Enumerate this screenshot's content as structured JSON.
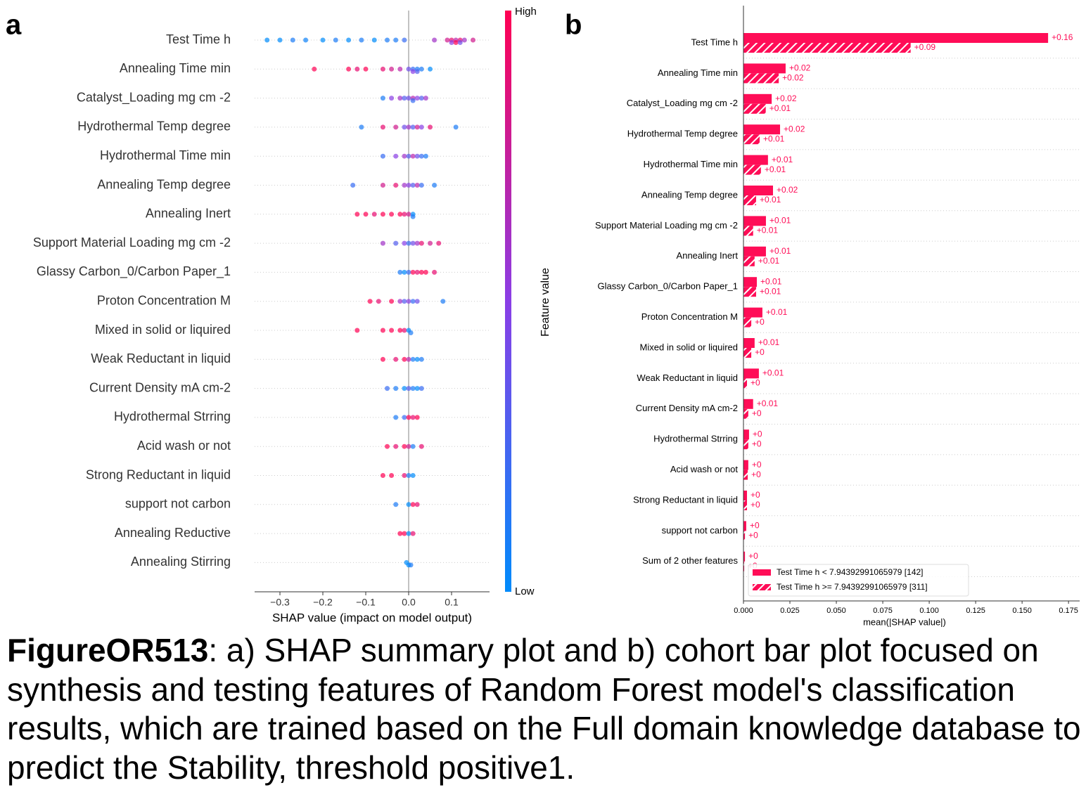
{
  "chart_data": [
    {
      "type": "beeswarm",
      "panel_label": "a",
      "features": [
        "Test Time h",
        "Annealing Time min",
        "Catalyst_Loading mg cm -2",
        "Hydrothermal Temp degree",
        "Hydrothermal Time min",
        "Annealing Temp degree",
        "Annealing Inert",
        "Support Material Loading mg cm -2",
        "Glassy Carbon_0/Carbon Paper_1",
        "Proton Concentration M",
        "Mixed in solid or liquired",
        "Weak Reductant in liquid",
        "Current Density mA cm-2",
        "Hydrothermal Strring",
        "Acid wash or not",
        "Strong Reductant in liquid",
        "support not carbon",
        "Annealing Reductive",
        "Annealing Stirring"
      ],
      "shap_values": [
        [
          -0.33,
          -0.3,
          -0.27,
          -0.24,
          -0.2,
          -0.17,
          -0.14,
          -0.11,
          -0.08,
          -0.05,
          -0.03,
          -0.01,
          0.06,
          0.09,
          0.1,
          0.11,
          0.12,
          0.13,
          0.15,
          0.1,
          0.11,
          0.12
        ],
        [
          -0.22,
          -0.14,
          -0.12,
          -0.1,
          -0.06,
          -0.04,
          -0.02,
          0.0,
          0.01,
          0.02,
          0.02,
          0.03,
          0.01,
          0.05
        ],
        [
          -0.06,
          -0.04,
          -0.02,
          -0.01,
          0.0,
          0.01,
          0.01,
          0.02,
          0.03,
          0.04
        ],
        [
          -0.11,
          -0.06,
          -0.03,
          -0.01,
          0.0,
          0.01,
          0.02,
          0.03,
          0.05,
          0.11
        ],
        [
          -0.06,
          -0.03,
          -0.01,
          0.0,
          0.01,
          0.02,
          0.03,
          0.04
        ],
        [
          -0.13,
          -0.06,
          -0.03,
          -0.01,
          0.0,
          0.01,
          0.02,
          0.03,
          0.06
        ],
        [
          -0.12,
          -0.1,
          -0.08,
          -0.06,
          -0.04,
          -0.02,
          -0.01,
          0.0,
          0.01,
          0.01
        ],
        [
          -0.06,
          -0.03,
          -0.01,
          0.0,
          0.01,
          0.02,
          0.03,
          0.05,
          0.07
        ],
        [
          -0.02,
          -0.01,
          0.0,
          0.01,
          0.02,
          0.03,
          0.04,
          0.06
        ],
        [
          -0.09,
          -0.07,
          -0.04,
          -0.02,
          -0.01,
          0.0,
          0.01,
          0.02,
          0.08
        ],
        [
          -0.12,
          -0.06,
          -0.04,
          -0.02,
          -0.01,
          0.0,
          0.005
        ],
        [
          -0.06,
          -0.03,
          -0.01,
          0.0,
          0.01,
          0.02,
          0.03
        ],
        [
          -0.05,
          -0.03,
          -0.01,
          0.0,
          0.01,
          0.02,
          0.03
        ],
        [
          -0.03,
          -0.01,
          0.0,
          0.01,
          0.02
        ],
        [
          -0.05,
          -0.03,
          -0.01,
          0.0,
          0.01,
          0.03
        ],
        [
          -0.06,
          -0.04,
          -0.01,
          0.0,
          0.01
        ],
        [
          -0.03,
          0.0,
          0.01,
          0.02
        ],
        [
          -0.02,
          -0.01,
          0.0,
          0.01
        ],
        [
          -0.005,
          0.0,
          0.005
        ]
      ],
      "feature_values": [
        [
          0,
          0,
          0.1,
          0.05,
          0,
          0.1,
          0,
          0.1,
          0,
          0.1,
          0.1,
          0.2,
          0.6,
          0.8,
          0.9,
          0.7,
          0.9,
          0.6,
          0.8,
          0.5,
          1,
          0.4
        ],
        [
          1,
          1,
          0.9,
          1,
          0.9,
          0.8,
          0.7,
          0.4,
          0.2,
          0.1,
          0.3,
          0.1,
          0.5,
          0
        ],
        [
          0.1,
          0.5,
          0.6,
          0.3,
          0.4,
          0.7,
          0.2,
          0.5,
          0.3,
          0.6
        ],
        [
          0.1,
          0.9,
          0.8,
          0.4,
          0.6,
          0.3,
          0.8,
          0.5,
          0.9,
          0.1
        ],
        [
          0.2,
          0.5,
          0.6,
          0.3,
          0.7,
          0.4,
          0.2,
          0.1
        ],
        [
          0.2,
          0.8,
          0.9,
          0.6,
          0.5,
          0.3,
          0.7,
          0.2,
          0.1
        ],
        [
          1,
          1,
          0.9,
          1,
          1,
          1,
          0.9,
          0.8,
          0,
          0.1
        ],
        [
          0.6,
          0.3,
          0.5,
          0.2,
          0.4,
          0.6,
          0.9,
          0.8,
          0.9
        ],
        [
          0.1,
          0,
          0.2,
          1,
          0.9,
          1,
          1,
          0.9
        ],
        [
          1,
          0.9,
          1,
          0.6,
          0.3,
          0.5,
          0.2,
          0.4,
          0.1
        ],
        [
          1,
          1,
          1,
          1,
          0.9,
          0,
          0.1
        ],
        [
          1,
          0.9,
          1,
          0.7,
          0.1,
          0,
          0.1
        ],
        [
          0.2,
          0.1,
          0,
          0.3,
          0.1,
          0,
          0.2
        ],
        [
          0.1,
          0.2,
          1,
          0.9,
          1
        ],
        [
          1,
          0.9,
          1,
          0.8,
          0.1,
          0.9
        ],
        [
          1,
          1,
          0.9,
          0.1,
          0
        ],
        [
          0.1,
          0,
          1,
          0.9
        ],
        [
          1,
          1,
          0,
          0.9
        ],
        [
          0,
          0,
          0.1
        ]
      ],
      "colormap": [
        "#008bfb",
        "#8a3ee6",
        "#ff0052"
      ],
      "xlim": [
        -0.359,
        0.1885
      ],
      "xticks": [
        {
          "value": -0.3,
          "label": "−0.3"
        },
        {
          "value": -0.2,
          "label": "−0.2"
        },
        {
          "value": -0.1,
          "label": "−0.1"
        },
        {
          "value": 0,
          "label": "0.0"
        },
        0.1
      ],
      "xlabel": "SHAP value (impact on model output)",
      "colorbar": {
        "high": "High",
        "low": "Low",
        "label": "Feature value"
      }
    },
    {
      "type": "bar",
      "orientation": "horizontal",
      "panel_label": "b",
      "categories": [
        "Test Time h",
        "Annealing Time min",
        "Catalyst_Loading mg cm -2",
        "Hydrothermal Temp degree",
        "Hydrothermal Time min",
        "Annealing Temp degree",
        "Support Material Loading mg cm -2",
        "Annealing Inert",
        "Glassy Carbon_0/Carbon Paper_1",
        "Proton Concentration M",
        "Mixed in solid or liquired",
        "Weak Reductant in liquid",
        "Current Density mA cm-2",
        "Hydrothermal Strring",
        "Acid wash or not",
        "Strong Reductant in liquid",
        "support not carbon",
        "Sum of 2 other features"
      ],
      "series": [
        {
          "name": "Test Time h < 7.94392991065979 [142]",
          "color": "#ff0d57",
          "hatch": false,
          "values": [
            0.164,
            0.0227,
            0.0152,
            0.0197,
            0.0132,
            0.0159,
            0.0121,
            0.0121,
            0.0072,
            0.0102,
            0.006,
            0.0083,
            0.0052,
            0.003,
            0.0026,
            0.0019,
            0.0015,
            0.0008
          ],
          "value_labels": [
            "+0.16",
            "+0.02",
            "+0.02",
            "+0.02",
            "+0.01",
            "+0.02",
            "+0.01",
            "+0.01",
            "+0.01",
            "+0.01",
            "+0.01",
            "+0.01",
            "+0.01",
            "+0",
            "+0",
            "+0",
            "+0",
            "+0"
          ]
        },
        {
          "name": "Test Time h >= 7.94392991065979 [311]",
          "color": "#ff0d57",
          "hatch": true,
          "values": [
            0.09,
            0.019,
            0.012,
            0.0087,
            0.0094,
            0.0068,
            0.0052,
            0.006,
            0.0068,
            0.0042,
            0.0042,
            0.0019,
            0.0026,
            0.0026,
            0.0023,
            0.0019,
            0.0008,
            0.0004
          ],
          "value_labels": [
            "+0.09",
            "+0.02",
            "+0.01",
            "+0.01",
            "+0.01",
            "+0.01",
            "+0.01",
            "+0.01",
            "+0.01",
            "+0",
            "+0",
            "+0",
            "+0",
            "+0",
            "+0",
            "+0",
            "+0",
            "+0"
          ]
        }
      ],
      "xlim": [
        0,
        0.181
      ],
      "xticks": [
        {
          "value": 0,
          "label": "0.000"
        },
        0.025,
        {
          "value": 0.05,
          "label": "0.050"
        },
        0.075,
        {
          "value": 0.1,
          "label": "0.100"
        },
        0.125,
        {
          "value": 0.15,
          "label": "0.150"
        },
        0.175
      ],
      "xlabel": "mean(|SHAP value|)",
      "legend": "lower-left",
      "grid": true
    }
  ],
  "caption": {
    "label": "FigureOR513",
    "text": ": a) SHAP summary plot and b) cohort bar plot focused on synthesis and testing features of Random Forest model's classification results, which are trained based on the Full domain knowledge database to predict the Stability, threshold positive1."
  }
}
